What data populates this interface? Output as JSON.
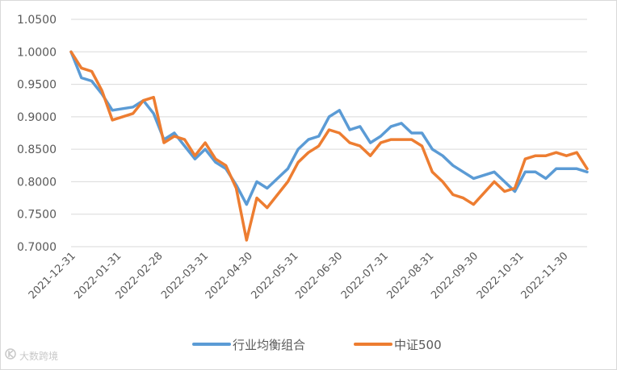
{
  "chart_data": {
    "type": "line",
    "title": "",
    "xlabel": "",
    "ylabel": "",
    "ylim": [
      0.7,
      1.05
    ],
    "y_ticks": [
      "0.7000",
      "0.7500",
      "0.8000",
      "0.8500",
      "0.9000",
      "0.9500",
      "1.0000",
      "1.0500"
    ],
    "x_ticks": [
      "2021-12-31",
      "2022-01-31",
      "2022-02-28",
      "2022-03-31",
      "2022-04-30",
      "2022-05-31",
      "2022-06-30",
      "2022-07-31",
      "2022-08-31",
      "2022-09-30",
      "2022-10-31",
      "2022-11-30"
    ],
    "grid": "horizontal",
    "legend_position": "bottom",
    "x": [
      "2021-12-31",
      "2022-01-07",
      "2022-01-14",
      "2022-01-21",
      "2022-01-28",
      "2022-02-11",
      "2022-02-18",
      "2022-02-25",
      "2022-03-04",
      "2022-03-11",
      "2022-03-18",
      "2022-03-25",
      "2022-04-01",
      "2022-04-08",
      "2022-04-15",
      "2022-04-22",
      "2022-04-29",
      "2022-05-06",
      "2022-05-13",
      "2022-05-20",
      "2022-05-27",
      "2022-06-03",
      "2022-06-10",
      "2022-06-17",
      "2022-06-24",
      "2022-07-01",
      "2022-07-08",
      "2022-07-15",
      "2022-07-22",
      "2022-07-29",
      "2022-08-05",
      "2022-08-12",
      "2022-08-19",
      "2022-08-26",
      "2022-09-02",
      "2022-09-09",
      "2022-09-16",
      "2022-09-23",
      "2022-09-30",
      "2022-10-14",
      "2022-10-21",
      "2022-10-28",
      "2022-11-04",
      "2022-11-11",
      "2022-11-18",
      "2022-11-25",
      "2022-12-02",
      "2022-12-09",
      "2022-12-16"
    ],
    "series": [
      {
        "name": "行业均衡组合",
        "color": "#5b9bd5",
        "values": [
          1.0,
          0.96,
          0.955,
          0.935,
          0.91,
          0.915,
          0.925,
          0.905,
          0.865,
          0.875,
          0.855,
          0.835,
          0.85,
          0.83,
          0.82,
          0.795,
          0.765,
          0.8,
          0.79,
          0.805,
          0.82,
          0.85,
          0.865,
          0.87,
          0.9,
          0.91,
          0.88,
          0.885,
          0.86,
          0.87,
          0.885,
          0.89,
          0.875,
          0.875,
          0.85,
          0.84,
          0.825,
          0.815,
          0.805,
          0.815,
          0.8,
          0.785,
          0.815,
          0.815,
          0.805,
          0.82,
          0.82,
          0.82,
          0.815
        ]
      },
      {
        "name": "中证500",
        "color": "#ed7d31",
        "values": [
          1.0,
          0.975,
          0.97,
          0.94,
          0.895,
          0.905,
          0.925,
          0.93,
          0.86,
          0.87,
          0.865,
          0.84,
          0.86,
          0.835,
          0.825,
          0.79,
          0.71,
          0.775,
          0.76,
          0.78,
          0.8,
          0.83,
          0.845,
          0.855,
          0.88,
          0.875,
          0.86,
          0.855,
          0.84,
          0.86,
          0.865,
          0.865,
          0.865,
          0.855,
          0.815,
          0.8,
          0.78,
          0.775,
          0.765,
          0.8,
          0.785,
          0.79,
          0.835,
          0.84,
          0.84,
          0.845,
          0.84,
          0.845,
          0.82
        ]
      }
    ]
  },
  "watermark": {
    "text": "大数跨境",
    "logo": "ks-logo-icon"
  }
}
